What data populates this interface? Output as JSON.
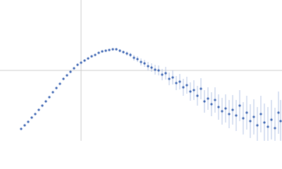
{
  "chart_data": {
    "type": "scatter",
    "x": [
      30,
      35,
      40,
      45,
      50,
      55,
      60,
      65,
      70,
      75,
      80,
      85,
      90,
      95,
      100,
      105,
      110,
      115,
      120,
      125,
      130,
      135,
      140,
      145,
      150,
      155,
      160,
      165,
      170,
      175,
      180,
      185,
      190,
      195,
      200,
      205,
      210,
      215,
      220,
      225,
      230,
      235,
      240,
      245,
      250,
      255,
      260,
      265,
      270,
      275,
      280,
      285,
      290,
      295,
      300,
      305,
      310,
      315,
      320,
      325,
      330,
      335,
      340,
      345,
      350,
      355,
      360,
      365,
      370,
      375,
      380,
      385,
      390,
      395,
      398
    ],
    "y": [
      17,
      22,
      27,
      33,
      38,
      44,
      50,
      56,
      62,
      69,
      75,
      81,
      88,
      93,
      98,
      103,
      108,
      111,
      114,
      117,
      120,
      122,
      125,
      127,
      128,
      129,
      130,
      130,
      128,
      126,
      124,
      122,
      118,
      116,
      112,
      110,
      106,
      104,
      101,
      100,
      94,
      96,
      88,
      90,
      82,
      84,
      76,
      79,
      70,
      72,
      64,
      74,
      56,
      60,
      52,
      58,
      48,
      42,
      46,
      38,
      44,
      36,
      50,
      32,
      40,
      28,
      34,
      22,
      38,
      26,
      20,
      30,
      18,
      40,
      28
    ],
    "errors": [
      0.5,
      0.5,
      0.5,
      0.5,
      0.5,
      0.5,
      0.5,
      0.5,
      0.5,
      0.5,
      0.5,
      0.5,
      0.5,
      0.5,
      0.5,
      0.5,
      0.5,
      0.5,
      0.5,
      0.5,
      0.5,
      0.5,
      0.5,
      0.5,
      0.5,
      1,
      1,
      1.5,
      2,
      2,
      3,
      3,
      4,
      4,
      5,
      5,
      6,
      6,
      7,
      7,
      8,
      9,
      9,
      10,
      10,
      11,
      12,
      12,
      13,
      14,
      14,
      15,
      16,
      16,
      17,
      18,
      18,
      19,
      20,
      20,
      21,
      22,
      22,
      23,
      24,
      24,
      25,
      26,
      26,
      27,
      28,
      28,
      29,
      30,
      30
    ],
    "color": "#3f67b3",
    "error_color": "#b4c4e4",
    "xlim": [
      0,
      400
    ],
    "ylim": [
      0,
      200
    ],
    "vline": 115,
    "hline": 100,
    "ref_color": "#cccccc"
  }
}
